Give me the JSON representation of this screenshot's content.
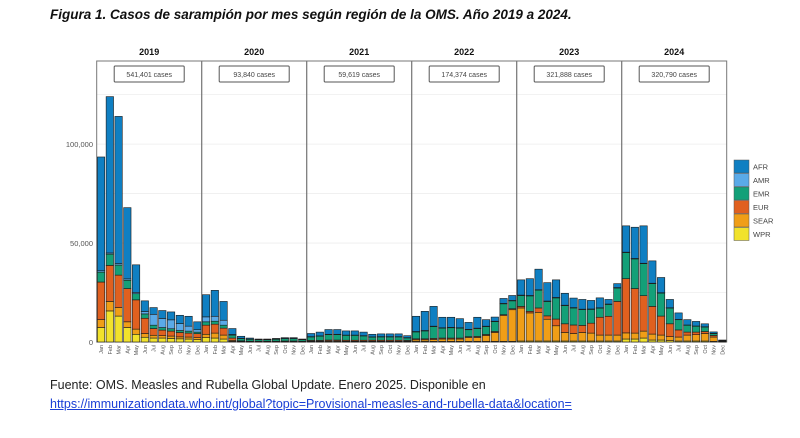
{
  "title": "Figura 1. Casos de sarampión por mes según región de la OMS. Año 2019 a 2024.",
  "source": "Fuente: OMS. Measles and Rubella Global Update. Enero 2025. Disponible en",
  "link": "https://immunizationdata.who.int/global?topic=Provisional-measles-and-rubella-data&location=",
  "chart_data": {
    "type": "bar",
    "stacked": true,
    "ylim": [
      0,
      142000
    ],
    "yticks": [
      0,
      50000,
      100000
    ],
    "ytick_labels": [
      "0",
      "50,000",
      "100,000"
    ],
    "grid": true,
    "legend_position": "right",
    "months": [
      "Jan",
      "Feb",
      "Mar",
      "Apr",
      "May",
      "Jun",
      "Jul",
      "Aug",
      "Sep",
      "Oct",
      "Nov",
      "Dec"
    ],
    "stack_order": [
      "WPR",
      "SEAR",
      "EUR",
      "EMR",
      "AMR",
      "AFR"
    ],
    "legend": [
      "AFR",
      "AMR",
      "EMR",
      "EUR",
      "SEAR",
      "WPR"
    ],
    "colors": {
      "AFR": "#0f7fc2",
      "AMR": "#5aaae8",
      "EMR": "#13a078",
      "EUR": "#e0601f",
      "SEAR": "#f09e17",
      "WPR": "#f1e22c"
    },
    "panels": [
      {
        "year": "2019",
        "total": "541,401 cases",
        "rows": [
          [
            7300,
            4000,
            19000,
            5000,
            700,
            57500
          ],
          [
            15700,
            4800,
            18200,
            5700,
            600,
            79000
          ],
          [
            13100,
            4300,
            16400,
            5100,
            700,
            74400
          ],
          [
            7300,
            2900,
            16800,
            4200,
            700,
            36000
          ],
          [
            3900,
            2600,
            14800,
            3100,
            700,
            13900
          ],
          [
            2400,
            1900,
            7700,
            2200,
            1200,
            5400
          ],
          [
            2000,
            1400,
            3400,
            1700,
            5500,
            3400
          ],
          [
            2000,
            1200,
            2800,
            1300,
            4600,
            4000
          ],
          [
            1800,
            1200,
            2500,
            1200,
            4500,
            4000
          ],
          [
            1600,
            1000,
            2200,
            1000,
            3500,
            4200
          ],
          [
            1500,
            1000,
            2000,
            1000,
            2500,
            5000
          ],
          [
            1200,
            1000,
            2000,
            800,
            1200,
            4000
          ]
        ]
      },
      {
        "year": "2020",
        "total": "93,840 cases",
        "rows": [
          [
            2200,
            1700,
            4600,
            1700,
            2500,
            11200
          ],
          [
            2000,
            2500,
            4500,
            1500,
            2500,
            13100
          ],
          [
            1500,
            2000,
            3500,
            1500,
            2500,
            9500
          ],
          [
            300,
            500,
            1200,
            1500,
            300,
            3000
          ],
          [
            100,
            200,
            300,
            1200,
            100,
            1000
          ],
          [
            100,
            100,
            200,
            1000,
            100,
            500
          ],
          [
            100,
            100,
            200,
            800,
            100,
            200
          ],
          [
            100,
            100,
            200,
            800,
            100,
            200
          ],
          [
            100,
            100,
            200,
            1000,
            100,
            300
          ],
          [
            100,
            100,
            300,
            1200,
            100,
            400
          ],
          [
            100,
            100,
            300,
            1200,
            100,
            400
          ],
          [
            100,
            100,
            200,
            800,
            100,
            200
          ]
        ]
      },
      {
        "year": "2021",
        "total": "59,619 cases",
        "rows": [
          [
            100,
            300,
            400,
            1800,
            100,
            1600
          ],
          [
            100,
            300,
            400,
            2200,
            100,
            1900
          ],
          [
            100,
            400,
            500,
            2800,
            100,
            2400
          ],
          [
            100,
            400,
            500,
            2800,
            100,
            2400
          ],
          [
            100,
            300,
            500,
            2500,
            100,
            2100
          ],
          [
            100,
            300,
            500,
            2500,
            100,
            2100
          ],
          [
            100,
            300,
            500,
            2200,
            100,
            1800
          ],
          [
            100,
            300,
            500,
            1600,
            100,
            1300
          ],
          [
            100,
            300,
            500,
            1700,
            100,
            1400
          ],
          [
            100,
            300,
            500,
            1700,
            100,
            1400
          ],
          [
            100,
            300,
            500,
            1700,
            100,
            1400
          ],
          [
            100,
            300,
            400,
            1300,
            100,
            1000
          ]
        ]
      },
      {
        "year": "2022",
        "total": "174,374 cases",
        "rows": [
          [
            300,
            800,
            500,
            3500,
            200,
            7700
          ],
          [
            300,
            800,
            500,
            4000,
            200,
            9700
          ],
          [
            300,
            1000,
            500,
            6000,
            200,
            10000
          ],
          [
            300,
            1200,
            500,
            5000,
            200,
            5300
          ],
          [
            300,
            1200,
            500,
            5200,
            200,
            5100
          ],
          [
            300,
            1200,
            500,
            5000,
            200,
            4600
          ],
          [
            300,
            2000,
            400,
            3500,
            200,
            3500
          ],
          [
            300,
            2000,
            500,
            4000,
            200,
            5500
          ],
          [
            300,
            3000,
            500,
            4000,
            200,
            3300
          ],
          [
            300,
            4500,
            500,
            5000,
            200,
            2100
          ],
          [
            300,
            13000,
            500,
            5500,
            200,
            2500
          ],
          [
            300,
            16000,
            500,
            4000,
            200,
            2500
          ]
        ]
      },
      {
        "year": "2023",
        "total": "321,888 cases",
        "rows": [
          [
            500,
            16700,
            800,
            5500,
            200,
            7700
          ],
          [
            500,
            14200,
            800,
            7800,
            200,
            8500
          ],
          [
            500,
            14500,
            2200,
            9000,
            200,
            10400
          ],
          [
            500,
            11000,
            1700,
            7300,
            200,
            9300
          ],
          [
            500,
            7700,
            3400,
            10700,
            200,
            8900
          ],
          [
            500,
            4300,
            4400,
            9200,
            200,
            6000
          ],
          [
            500,
            3800,
            4300,
            8600,
            200,
            4800
          ],
          [
            500,
            4300,
            3600,
            8000,
            200,
            4900
          ],
          [
            500,
            4000,
            5000,
            7000,
            200,
            4300
          ],
          [
            500,
            3000,
            9000,
            4600,
            200,
            5000
          ],
          [
            500,
            3000,
            9500,
            6000,
            200,
            2300
          ],
          [
            500,
            3000,
            17000,
            6800,
            200,
            2000
          ]
        ]
      },
      {
        "year": "2024",
        "total": "320,790 cases",
        "rows": [
          [
            1500,
            3100,
            27400,
            13200,
            200,
            13300
          ],
          [
            1500,
            3000,
            22500,
            15000,
            200,
            15800
          ],
          [
            2000,
            3500,
            17900,
            16200,
            200,
            18900
          ],
          [
            1000,
            3000,
            14000,
            11500,
            200,
            11300
          ],
          [
            1000,
            2500,
            9600,
            11600,
            200,
            7700
          ],
          [
            700,
            2000,
            6500,
            8000,
            100,
            4200
          ],
          [
            500,
            2000,
            3600,
            5200,
            100,
            3300
          ],
          [
            500,
            3000,
            1500,
            3500,
            100,
            2700
          ],
          [
            500,
            3200,
            1300,
            3000,
            100,
            2300
          ],
          [
            500,
            3800,
            1000,
            2300,
            100,
            1500
          ],
          [
            300,
            2200,
            800,
            1000,
            100,
            700
          ],
          [
            100,
            200,
            200,
            300,
            0,
            200
          ]
        ]
      }
    ]
  }
}
